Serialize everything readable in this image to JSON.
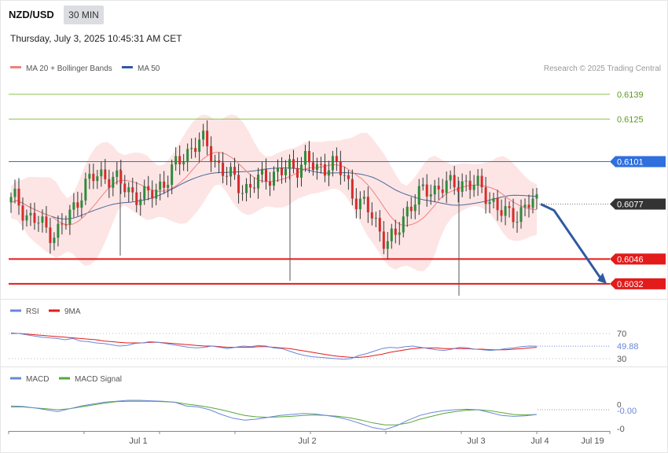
{
  "header": {
    "symbol": "NZD/USD",
    "timeframe": "30 MIN",
    "datetime": "Thursday, July 3, 2025 10:45:31 AM CET",
    "credit": "Research © 2025 Trading Central"
  },
  "colors": {
    "bull": "#2e8b3a",
    "bear": "#d62b2b",
    "ma20": "#f08080",
    "band_fill": "#fde0e0",
    "ma50": "#4a6a9a",
    "green_level": "#8bc34a",
    "blue_level": "#2f6fde",
    "red_level": "#e31b1b",
    "current": "#333333",
    "rsi": "#6a87d8",
    "rsi_ma": "#e31b1b",
    "macd": "#6a87d8",
    "macd_signal": "#56a83a",
    "arrow": "#2f5aa0"
  },
  "chart_data": [
    {
      "type": "candlestick",
      "title": "NZD/USD 30 MIN",
      "legend": [
        {
          "name": "MA 20 + Bollinger Bands",
          "color": "#f08080"
        },
        {
          "name": "MA 50",
          "color": "#2f5aa0"
        }
      ],
      "ylim": [
        0.6026,
        0.6148
      ],
      "x_labels": [
        "Jul 1",
        "Jul 2",
        "Jul 3",
        "Jul 4",
        "Jul 19"
      ],
      "levels": [
        {
          "value": 0.6139,
          "label": "0.6139",
          "kind": "resistance-minor"
        },
        {
          "value": 0.6125,
          "label": "0.6125",
          "kind": "resistance-minor"
        },
        {
          "value": 0.6101,
          "label": "0.6101",
          "kind": "pivot"
        },
        {
          "value": 0.6077,
          "label": "0.6077",
          "kind": "current"
        },
        {
          "value": 0.6046,
          "label": "0.6046",
          "kind": "support"
        },
        {
          "value": 0.6032,
          "label": "0.6032",
          "kind": "support"
        }
      ],
      "close_series": [
        0.6078,
        0.608,
        0.6075,
        0.607,
        0.6068,
        0.6066,
        0.6063,
        0.6062,
        0.6061,
        0.6064,
        0.6068,
        0.6074,
        0.6082,
        0.6088,
        0.609,
        0.6092,
        0.6093,
        0.6094,
        0.6092,
        0.6089,
        0.6086,
        0.6084,
        0.6083,
        0.6082,
        0.608,
        0.6083,
        0.6087,
        0.609,
        0.6093,
        0.6097,
        0.6102,
        0.6106,
        0.611,
        0.6112,
        0.6111,
        0.6108,
        0.6103,
        0.6098,
        0.6094,
        0.6091,
        0.6089,
        0.6087,
        0.6086,
        0.6088,
        0.609,
        0.6093,
        0.6094,
        0.6095,
        0.6095,
        0.6096,
        0.6098,
        0.61,
        0.6103,
        0.6099,
        0.6095,
        0.6098,
        0.6101,
        0.61,
        0.6096,
        0.6092,
        0.6086,
        0.6081,
        0.6077,
        0.6073,
        0.607,
        0.6064,
        0.6058,
        0.6056,
        0.6057,
        0.6067,
        0.6074,
        0.6079,
        0.6081,
        0.6083,
        0.6085,
        0.6086,
        0.6088,
        0.6087,
        0.6086,
        0.6089,
        0.609,
        0.6089,
        0.6087,
        0.6085,
        0.6083,
        0.608,
        0.6075,
        0.6071,
        0.607,
        0.6072,
        0.6073,
        0.6075,
        0.6078,
        0.6077
      ],
      "annotation": "projected decline toward 0.6032"
    },
    {
      "type": "line",
      "title": "RSI",
      "series": [
        {
          "name": "RSI",
          "color": "#6a87d8"
        },
        {
          "name": "9MA",
          "color": "#e31b1b"
        }
      ],
      "levels": [
        70,
        30
      ],
      "last_value": "49.88",
      "rsi": [
        71,
        70,
        68,
        66,
        64,
        63,
        62,
        60,
        62,
        58,
        57,
        55,
        54,
        52,
        50,
        51,
        54,
        55,
        57,
        56,
        54,
        52,
        50,
        48,
        47,
        48,
        50,
        48,
        46,
        48,
        50,
        49,
        51,
        50,
        47,
        46,
        42,
        38,
        35,
        33,
        32,
        31,
        30,
        29,
        30,
        35,
        38,
        42,
        46,
        48,
        47,
        49,
        50,
        48,
        46,
        44,
        43,
        45,
        48,
        47,
        45,
        44,
        43,
        44,
        46,
        47,
        49,
        50,
        49.88
      ],
      "ma9": [
        70,
        70,
        69,
        68,
        67,
        66,
        65,
        64,
        63,
        62,
        61,
        60,
        58,
        57,
        56,
        55,
        55,
        55,
        56,
        56,
        55,
        54,
        53,
        52,
        51,
        50,
        50,
        49,
        48,
        48,
        48,
        48,
        49,
        49,
        48,
        47,
        46,
        44,
        42,
        40,
        38,
        36,
        34,
        33,
        32,
        32,
        33,
        35,
        37,
        40,
        42,
        44,
        46,
        47,
        47,
        47,
        46,
        46,
        46,
        46,
        45,
        45,
        44,
        44,
        44,
        45,
        46,
        47,
        48
      ]
    },
    {
      "type": "line",
      "title": "MACD",
      "series": [
        {
          "name": "MACD",
          "color": "#6a87d8"
        },
        {
          "name": "MACD Signal",
          "color": "#56a83a"
        }
      ],
      "y_ticks": [
        "0",
        "-0"
      ],
      "last_value": "-0.00",
      "macd": [
        0.4,
        0.35,
        0.2,
        0.0,
        -0.2,
        0.1,
        0.4,
        0.6,
        0.8,
        0.9,
        1.0,
        1.0,
        0.95,
        0.9,
        0.8,
        0.4,
        0.3,
        0.0,
        -0.5,
        -0.9,
        -1.1,
        -1.0,
        -0.8,
        -0.6,
        -0.5,
        -0.4,
        -0.45,
        -0.6,
        -0.8,
        -1.1,
        -1.5,
        -1.9,
        -2.1,
        -1.7,
        -1.1,
        -0.6,
        -0.3,
        -0.1,
        0.0,
        0.05,
        0.0,
        -0.3,
        -0.6,
        -0.7,
        -0.65,
        -0.5
      ],
      "signal": [
        0.3,
        0.3,
        0.2,
        0.1,
        0.0,
        0.1,
        0.3,
        0.5,
        0.7,
        0.85,
        0.9,
        0.9,
        0.9,
        0.85,
        0.8,
        0.6,
        0.45,
        0.25,
        0.0,
        -0.3,
        -0.6,
        -0.75,
        -0.8,
        -0.75,
        -0.7,
        -0.6,
        -0.55,
        -0.6,
        -0.7,
        -0.85,
        -1.1,
        -1.4,
        -1.6,
        -1.6,
        -1.4,
        -1.0,
        -0.7,
        -0.4,
        -0.2,
        -0.05,
        0.0,
        -0.1,
        -0.3,
        -0.5,
        -0.55,
        -0.5
      ]
    }
  ]
}
